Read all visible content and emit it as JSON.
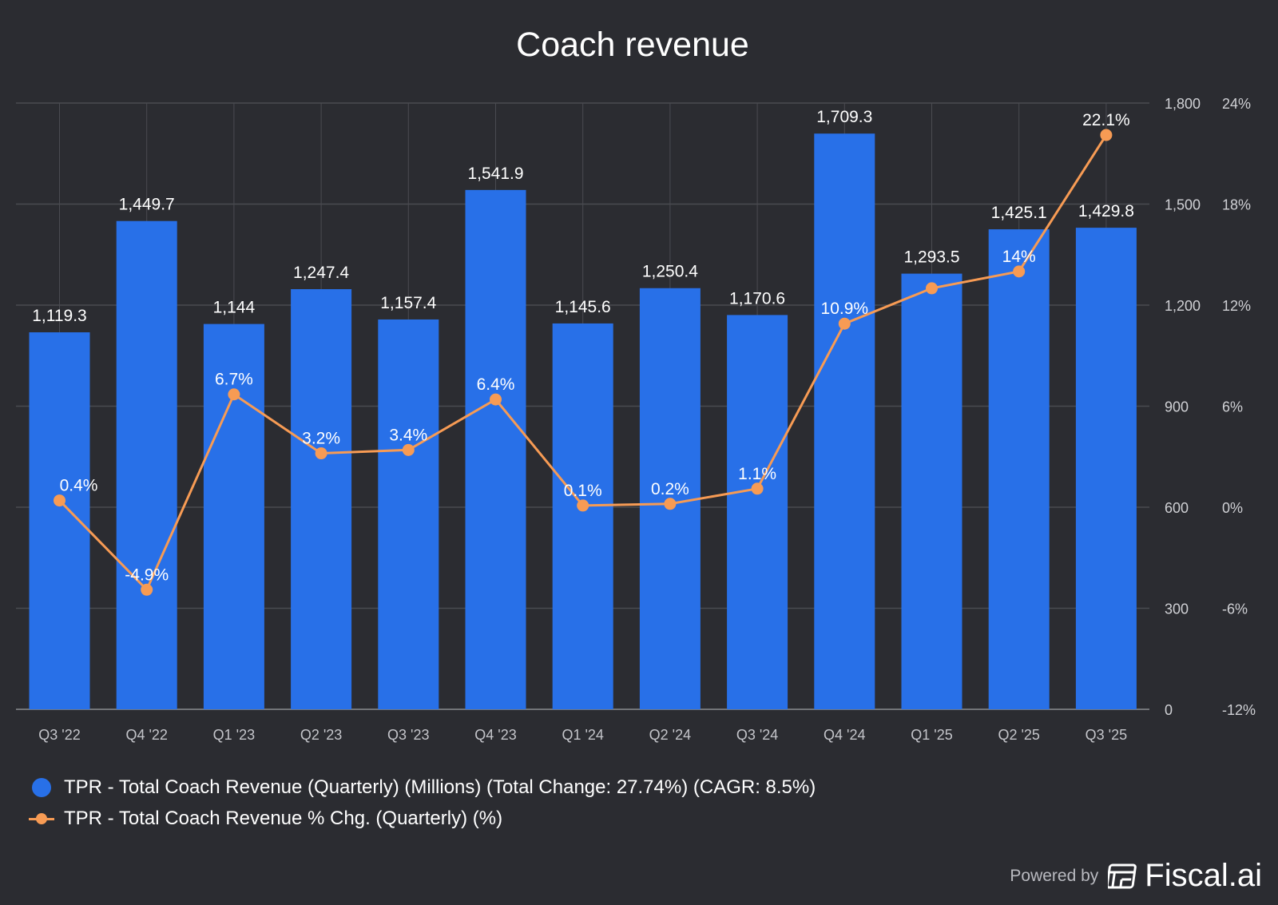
{
  "chart_data": {
    "type": "bar+line",
    "title": "Coach revenue",
    "categories": [
      "Q3 '22",
      "Q4 '22",
      "Q1 '23",
      "Q2 '23",
      "Q3 '23",
      "Q4 '23",
      "Q1 '24",
      "Q2 '24",
      "Q3 '24",
      "Q4 '24",
      "Q1 '25",
      "Q2 '25",
      "Q3 '25"
    ],
    "series": [
      {
        "name": "TPR - Total Coach Revenue (Quarterly) (Millions) (Total Change: 27.74%) (CAGR: 8.5%)",
        "type": "bar",
        "axis": "left",
        "color": "#2870e8",
        "values": [
          1119.3,
          1449.7,
          1144,
          1247.4,
          1157.4,
          1541.9,
          1145.6,
          1250.4,
          1170.6,
          1709.3,
          1293.5,
          1425.1,
          1429.8
        ],
        "labels": [
          "1,119.3",
          "1,449.7",
          "1,144",
          "1,247.4",
          "1,157.4",
          "1,541.9",
          "1,145.6",
          "1,250.4",
          "1,170.6",
          "1,709.3",
          "1,293.5",
          "1,425.1",
          "1,429.8"
        ]
      },
      {
        "name": "TPR - Total Coach Revenue % Chg. (Quarterly) (%)",
        "type": "line",
        "axis": "right",
        "color": "#f79b54",
        "values": [
          0.4,
          -4.9,
          6.7,
          3.2,
          3.4,
          6.4,
          0.1,
          0.2,
          1.1,
          10.9,
          13.0,
          14,
          22.1
        ],
        "labels": [
          "0.4%",
          "-4.9%",
          "6.7%",
          "3.2%",
          "3.4%",
          "6.4%",
          "0.1%",
          "0.2%",
          "1.1%",
          "10.9%",
          "",
          "14%",
          "22.1%"
        ]
      }
    ],
    "y_left": {
      "range": [
        0,
        1800
      ],
      "ticks": [
        "1,800",
        "1,500",
        "1,200",
        "900",
        "600",
        "300",
        "0"
      ],
      "tick_values": [
        1800,
        1500,
        1200,
        900,
        600,
        300,
        0
      ]
    },
    "y_right": {
      "range": [
        -12,
        24
      ],
      "ticks": [
        "24%",
        "18%",
        "12%",
        "6%",
        "0%",
        "-6%",
        "-12%"
      ]
    },
    "grid": true,
    "legend_position": "bottom-left"
  },
  "footer": {
    "powered_by": "Powered by",
    "brand": "Fiscal.ai"
  },
  "colors": {
    "background": "#2b2c31",
    "bar": "#2870e8",
    "line": "#f79b54",
    "grid": "#4a4b51"
  }
}
